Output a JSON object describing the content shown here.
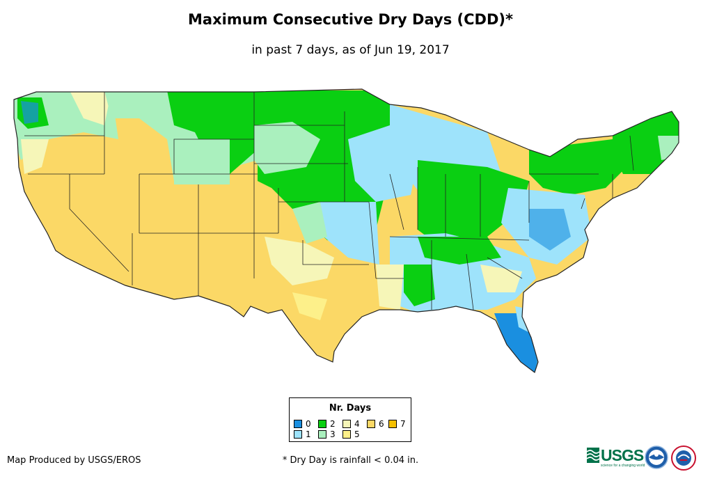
{
  "title": "Maximum Consecutive Dry Days (CDD)*",
  "subtitle": "in past 7 days, as of Jun 19, 2017",
  "legend": {
    "title": "Nr. Days",
    "items": [
      {
        "label": "0",
        "color": "#1a8fe0"
      },
      {
        "label": "1",
        "color": "#9ee3fb"
      },
      {
        "label": "2",
        "color": "#0acf12"
      },
      {
        "label": "3",
        "color": "#aaf0be"
      },
      {
        "label": "4",
        "color": "#f6f6b8"
      },
      {
        "label": "5",
        "color": "#fdf08a"
      },
      {
        "label": "6",
        "color": "#fbd866"
      },
      {
        "label": "7",
        "color": "#f5c000"
      }
    ]
  },
  "footer": {
    "credit": "Map Produced by USGS/EROS",
    "footnote": "* Dry Day is rainfall < 0.04 in.",
    "usgs_logo": "USGS",
    "usgs_tagline": "science for a changing world",
    "noaa_logo": "noaa-logo-icon",
    "nws_logo": "national-weather-service-logo-icon"
  },
  "map_colors": {
    "water": "#ffffff",
    "border": "#222222"
  }
}
